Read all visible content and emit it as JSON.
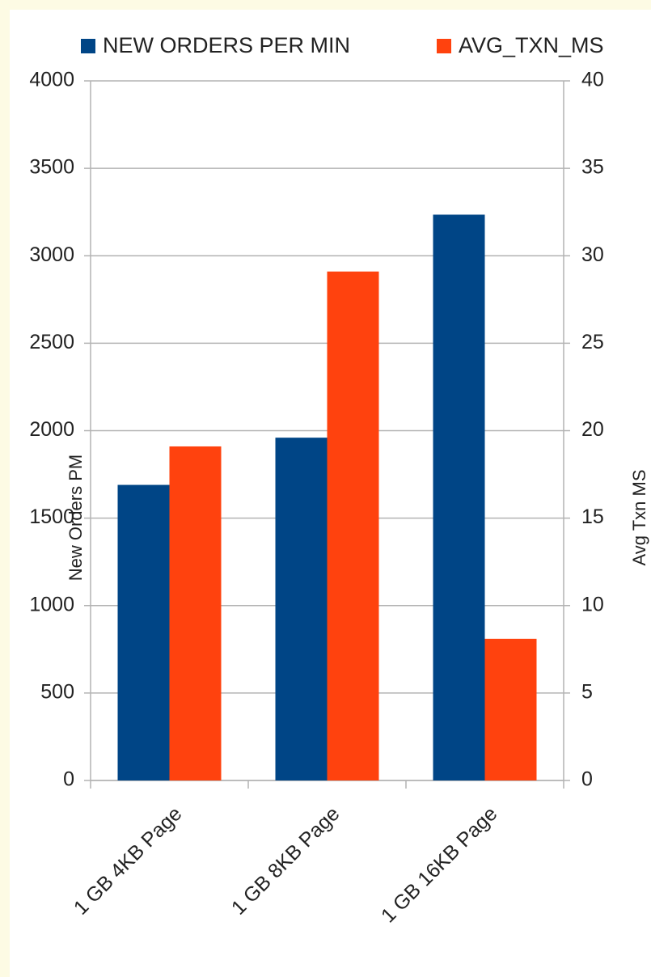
{
  "chart_data": {
    "type": "bar",
    "categories": [
      "1 GB 4KB Page",
      "1 GB 8KB Page",
      "1 GB 16KB Page"
    ],
    "series": [
      {
        "name": "NEW ORDERS PER MIN",
        "color": "#004586",
        "values": [
          1690,
          1960,
          3235
        ]
      },
      {
        "name": "AVG_TXN_MS",
        "color": "#ff420e",
        "axis": "y2",
        "values": [
          19.1,
          29.1,
          8.1
        ]
      }
    ],
    "ylabel": "New Orders PM",
    "y2label": "Avg Txn MS",
    "ylim": [
      0,
      4000
    ],
    "yticks": [
      0,
      500,
      1000,
      1500,
      2000,
      2500,
      3000,
      3500,
      4000
    ],
    "y2lim": [
      0,
      40
    ],
    "y2ticks": [
      0,
      5,
      10,
      15,
      20,
      25,
      30,
      35,
      40
    ],
    "grid": true,
    "legend": "top"
  }
}
